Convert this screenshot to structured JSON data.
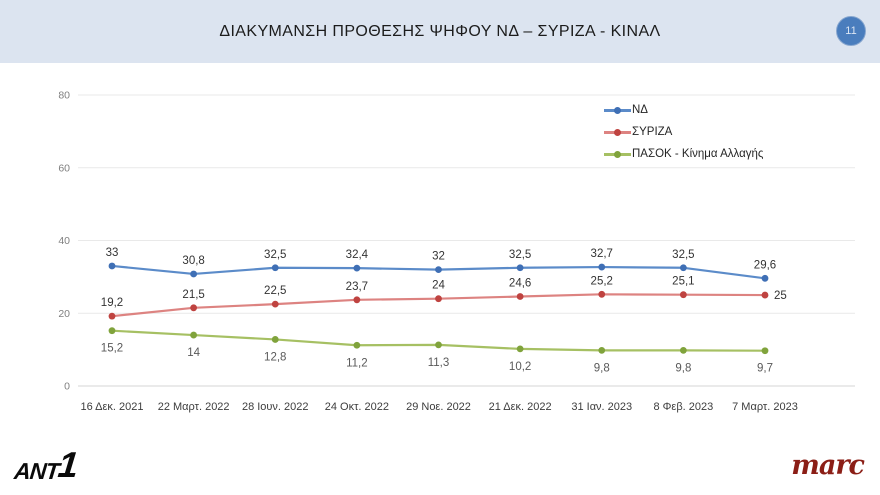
{
  "header": {
    "title": "ΔΙΑΚΥΜΑΝΣΗ ΠΡΟΘΕΣΗΣ ΨΗΦΟΥ ΝΔ – ΣΥΡΙΖΑ - ΚΙΝΑΛ",
    "page_number": "11"
  },
  "chart_data": {
    "type": "line",
    "title": "",
    "xlabel": "",
    "ylabel": "",
    "grid": true,
    "legend_position": "top-right-inside",
    "ylim": [
      0,
      85
    ],
    "yticks": [
      0,
      20,
      40,
      60,
      80
    ],
    "categories": [
      "16 Δεκ. 2021",
      "22 Μαρτ. 2022",
      "28 Ιουν. 2022",
      "24 Οκτ. 2022",
      "29 Νοε. 2022",
      "21 Δεκ. 2022",
      "31 Ιαν. 2023",
      "8 Φεβ. 2023",
      "7 Μαρτ. 2023"
    ],
    "series": [
      {
        "name": "ΝΔ",
        "values": [
          33,
          30.8,
          32.5,
          32.4,
          32,
          32.5,
          32.7,
          32.5,
          29.6
        ],
        "labels": [
          "33",
          "30,8",
          "32,5",
          "32,4",
          "32",
          "32,5",
          "32,7",
          "32,5",
          "29,6"
        ],
        "line_color": "#5b8bc9",
        "marker_color": "#3f6fb5",
        "label_color": "#333333",
        "label_position": "above",
        "label_overrides": {}
      },
      {
        "name": "ΣΥΡΙΖΑ",
        "values": [
          19.2,
          21.5,
          22.5,
          23.7,
          24,
          24.6,
          25.2,
          25.1,
          25
        ],
        "labels": [
          "19,2",
          "21,5",
          "22,5",
          "23,7",
          "24",
          "24,6",
          "25,2",
          "25,1",
          "25"
        ],
        "line_color": "#dd8381",
        "marker_color": "#bf4340",
        "label_color": "#333333",
        "label_position": "above",
        "label_overrides": {
          "8": "right"
        }
      },
      {
        "name": "ΠΑΣΟΚ - Κίνημα Αλλαγής",
        "values": [
          15.2,
          14,
          12.8,
          11.2,
          11.3,
          10.2,
          9.8,
          9.8,
          9.7
        ],
        "labels": [
          "15,2",
          "14",
          "12,8",
          "11,2",
          "11,3",
          "10,2",
          "9,8",
          "9,8",
          "9,7"
        ],
        "line_color": "#a6c063",
        "marker_color": "#80a33c",
        "label_color": "#595959",
        "label_position": "below",
        "label_overrides": {}
      }
    ],
    "colors": {
      "grid_line": "#e9e9e9",
      "axis_line": "#d6d6d6",
      "header_bg": "#dce4f0",
      "page_circle": "#4a7dbd"
    }
  },
  "footer": {
    "left_logo": "ANT1",
    "left_logo_text": "ANT",
    "left_logo_one": "1",
    "right_logo": "marc"
  }
}
